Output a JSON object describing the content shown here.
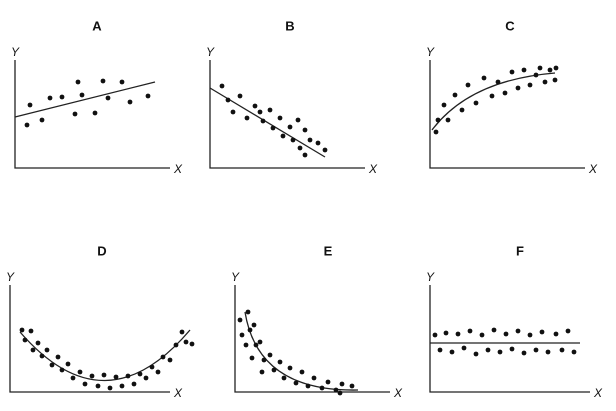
{
  "panels": [
    {
      "label": "A",
      "y_label": "Y",
      "x_label": "X"
    },
    {
      "label": "B",
      "y_label": "Y",
      "x_label": "X"
    },
    {
      "label": "C",
      "y_label": "Y",
      "x_label": "X"
    },
    {
      "label": "D",
      "y_label": "Y",
      "x_label": "X"
    },
    {
      "label": "E",
      "y_label": "Y",
      "x_label": "X"
    },
    {
      "label": "F",
      "y_label": "Y",
      "x_label": "X"
    }
  ]
}
